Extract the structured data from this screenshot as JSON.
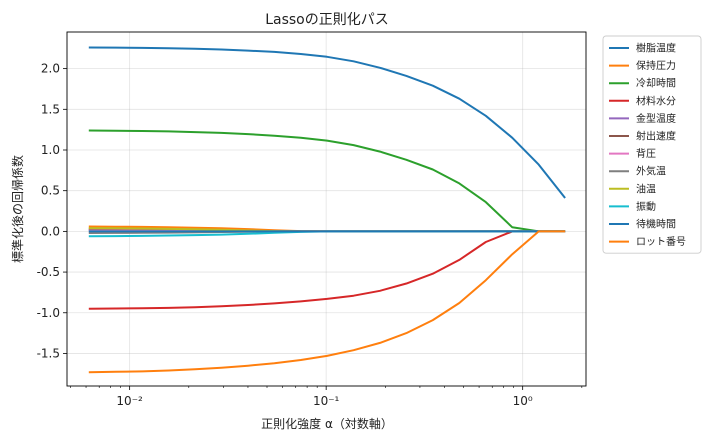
{
  "chart_data": {
    "type": "line",
    "title": "Lassoの正則化パス",
    "xlabel": "正則化強度 α（対数軸）",
    "ylabel": "標準化後の回帰係数",
    "xscale": "log",
    "xlim": [
      0.0048,
      2.1
    ],
    "ylim": [
      -1.9,
      2.45
    ],
    "x_tick_labels": [
      "10⁻²",
      "10⁻¹",
      "10⁰"
    ],
    "y_tick_labels": [
      "2.0",
      "1.5",
      "1.0",
      "0.5",
      "0.0",
      "-0.5",
      "-1.0",
      "-1.5"
    ],
    "grid": true,
    "legend_position": "right",
    "x": [
      0.0062,
      0.0085,
      0.0116,
      0.0158,
      0.0215,
      0.0293,
      0.04,
      0.0545,
      0.0743,
      0.101,
      0.138,
      0.188,
      0.256,
      0.349,
      0.476,
      0.649,
      0.885,
      1.206,
      1.644
    ],
    "series": [
      {
        "name": "樹脂温度",
        "color": "#1f77b4",
        "values": [
          2.26,
          2.258,
          2.255,
          2.25,
          2.245,
          2.235,
          2.222,
          2.205,
          2.18,
          2.145,
          2.09,
          2.01,
          1.91,
          1.79,
          1.63,
          1.42,
          1.15,
          0.82,
          0.41
        ]
      },
      {
        "name": "保持圧力",
        "color": "#ff7f0e",
        "values": [
          0.06,
          0.058,
          0.055,
          0.05,
          0.045,
          0.038,
          0.028,
          0.015,
          0.003,
          0,
          0,
          0,
          0,
          0,
          0,
          0,
          0,
          0,
          0
        ]
      },
      {
        "name": "冷却時間",
        "color": "#2ca02c",
        "values": [
          1.24,
          1.237,
          1.233,
          1.228,
          1.22,
          1.21,
          1.195,
          1.175,
          1.15,
          1.115,
          1.06,
          0.98,
          0.88,
          0.76,
          0.59,
          0.36,
          0.05,
          0,
          0
        ]
      },
      {
        "name": "材料水分",
        "color": "#d62728",
        "values": [
          -0.95,
          -0.948,
          -0.945,
          -0.94,
          -0.932,
          -0.92,
          -0.905,
          -0.885,
          -0.86,
          -0.83,
          -0.79,
          -0.73,
          -0.64,
          -0.52,
          -0.35,
          -0.13,
          0,
          0,
          0
        ]
      },
      {
        "name": "金型温度",
        "color": "#9467bd",
        "values": [
          0.03,
          0.028,
          0.026,
          0.022,
          0.018,
          0.012,
          0.006,
          0.002,
          0,
          0,
          0,
          0,
          0,
          0,
          0,
          0,
          0,
          0,
          0
        ]
      },
      {
        "name": "射出速度",
        "color": "#8c564b",
        "values": [
          0.02,
          0.019,
          0.017,
          0.015,
          0.012,
          0.008,
          0.004,
          0.001,
          0,
          0,
          0,
          0,
          0,
          0,
          0,
          0,
          0,
          0,
          0
        ]
      },
      {
        "name": "背圧",
        "color": "#e377c2",
        "values": [
          0.01,
          0.009,
          0.008,
          0.007,
          0.005,
          0.003,
          0.001,
          0,
          0,
          0,
          0,
          0,
          0,
          0,
          0,
          0,
          0,
          0,
          0
        ]
      },
      {
        "name": "外気温",
        "color": "#7f7f7f",
        "values": [
          -0.02,
          -0.019,
          -0.017,
          -0.015,
          -0.012,
          -0.008,
          -0.004,
          -0.001,
          0,
          0,
          0,
          0,
          0,
          0,
          0,
          0,
          0,
          0,
          0
        ]
      },
      {
        "name": "油温",
        "color": "#bcbd22",
        "values": [
          0.04,
          0.038,
          0.035,
          0.031,
          0.026,
          0.019,
          0.011,
          0.004,
          0,
          0,
          0,
          0,
          0,
          0,
          0,
          0,
          0,
          0,
          0
        ]
      },
      {
        "name": "振動",
        "color": "#17becf",
        "values": [
          -0.06,
          -0.058,
          -0.055,
          -0.051,
          -0.046,
          -0.039,
          -0.03,
          -0.018,
          -0.006,
          0,
          0,
          0,
          0,
          0,
          0,
          0,
          0,
          0,
          0
        ]
      },
      {
        "name": "待機時間",
        "color": "#1f77b4",
        "values": [
          0.0,
          0,
          0,
          0,
          0,
          0,
          0,
          0,
          0,
          0,
          0,
          0,
          0,
          0,
          0,
          0,
          0,
          0,
          0
        ]
      },
      {
        "name": "ロット番号",
        "color": "#ff7f0e",
        "values": [
          -1.73,
          -1.726,
          -1.72,
          -1.71,
          -1.695,
          -1.675,
          -1.65,
          -1.62,
          -1.58,
          -1.53,
          -1.46,
          -1.37,
          -1.25,
          -1.09,
          -0.88,
          -0.6,
          -0.28,
          0,
          0
        ]
      }
    ]
  }
}
